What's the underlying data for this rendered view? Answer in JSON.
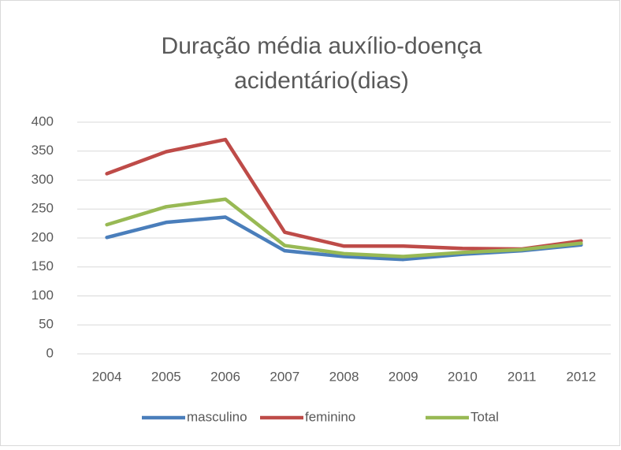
{
  "chart_data": {
    "type": "line",
    "title": [
      "Duração média auxílio-doença",
      "acidentário(dias)"
    ],
    "categories": [
      "2004",
      "2005",
      "2006",
      "2007",
      "2008",
      "2009",
      "2010",
      "2011",
      "2012"
    ],
    "series": [
      {
        "name": "masculino",
        "color": "#4a7ebb",
        "values": [
          201,
          227,
          236,
          178,
          168,
          163,
          172,
          178,
          188
        ]
      },
      {
        "name": "feminino",
        "color": "#be4b48",
        "values": [
          311,
          349,
          370,
          210,
          186,
          186,
          182,
          181,
          195
        ]
      },
      {
        "name": "Total",
        "color": "#98b954",
        "values": [
          223,
          254,
          267,
          187,
          173,
          168,
          175,
          180,
          191
        ]
      }
    ],
    "ylim": [
      0,
      400
    ],
    "yticks": [
      0,
      50,
      100,
      150,
      200,
      250,
      300,
      350,
      400
    ],
    "grid": true,
    "legend": "bottom"
  }
}
